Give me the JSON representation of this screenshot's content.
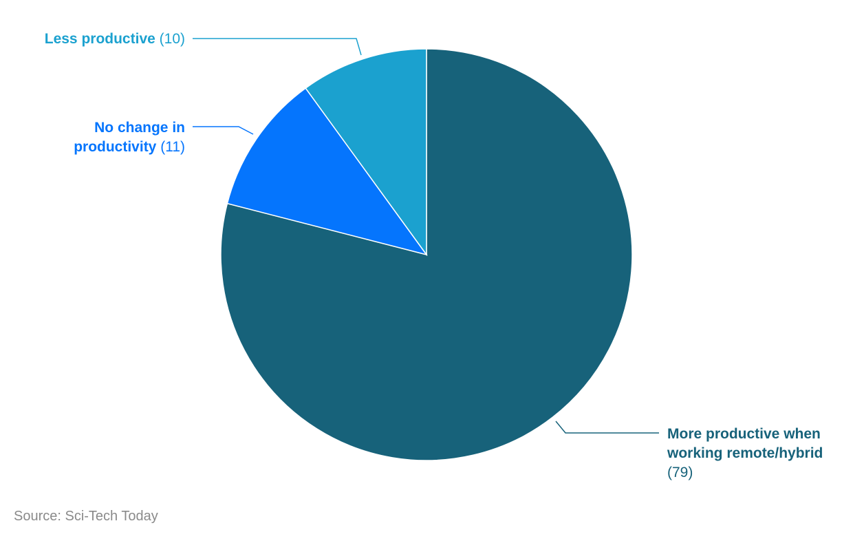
{
  "chart_data": {
    "type": "pie",
    "title": "",
    "slices": [
      {
        "label": "More productive when working remote/hybrid",
        "label_lines": [
          "More productive when",
          "working remote/hybrid"
        ],
        "value_label": "(79)",
        "value": 79,
        "color": "#17627A"
      },
      {
        "label": "No change in productivity",
        "label_lines": [
          "No change in",
          "productivity"
        ],
        "value_label": "(11)",
        "value": 11,
        "color": "#0575FD"
      },
      {
        "label": "Less productive",
        "label_lines": [
          "Less productive"
        ],
        "value_label": "(10)",
        "value": 10,
        "color": "#1BA1CF"
      }
    ]
  },
  "source": "Source: Sci-Tech Today"
}
